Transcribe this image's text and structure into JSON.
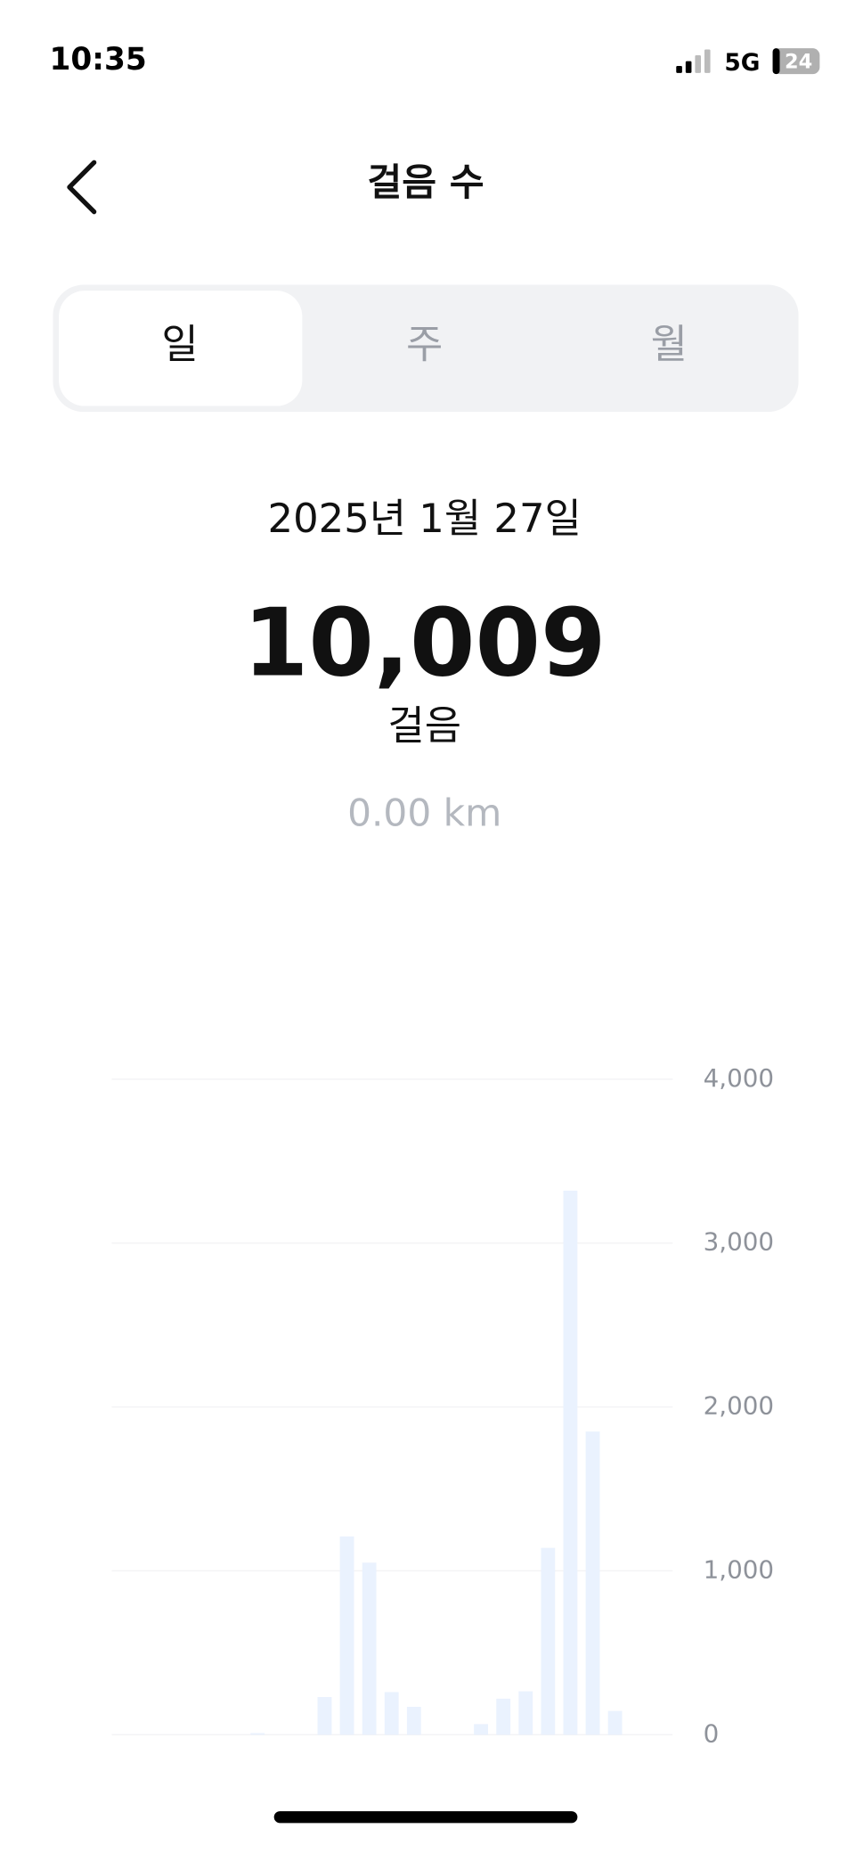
{
  "status_bar": {
    "time": "10:35",
    "network": "5G",
    "battery": "24"
  },
  "header": {
    "title": "걸음 수"
  },
  "tabs": [
    "일",
    "주",
    "월"
  ],
  "summary": {
    "date": "2025년 1월 27일",
    "steps": "10,009",
    "unit": "걸음",
    "distance": "0.00 km"
  },
  "chart_data": {
    "type": "bar",
    "values": [
      0,
      0,
      0,
      0,
      0,
      0,
      10,
      0,
      0,
      230,
      1210,
      1050,
      260,
      170,
      0,
      0,
      65,
      220,
      265,
      1140,
      3320,
      1850,
      145,
      0
    ],
    "color": "#eaf2fe",
    "ylim": [
      0,
      4000
    ],
    "yticks": [
      0,
      {
        "value": 1000,
        "label": "1,000"
      },
      {
        "value": 2000,
        "label": "2,000"
      },
      {
        "value": 3000,
        "label": "3,000"
      },
      {
        "value": 4000,
        "label": "4,000"
      }
    ],
    "grid": true
  }
}
